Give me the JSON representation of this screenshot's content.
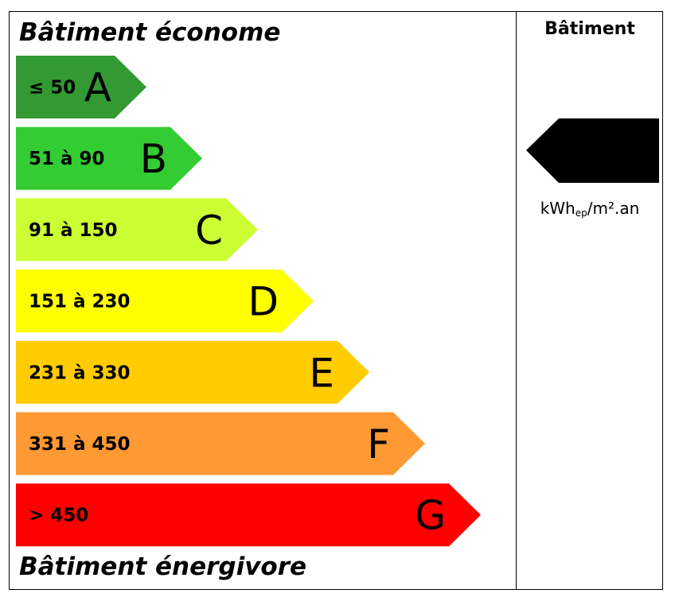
{
  "header": {
    "title_top": "Bâtiment économe",
    "title_bottom": "Bâtiment énergivore",
    "column_title": "Bâtiment"
  },
  "unit": {
    "main": "kWh",
    "sub": "ep",
    "tail": "/m².an"
  },
  "classes": [
    {
      "letter": "A",
      "range": "≤ 50",
      "color": "#339933"
    },
    {
      "letter": "B",
      "range": "51 à 90",
      "color": "#33cc33"
    },
    {
      "letter": "C",
      "range": "91 à 150",
      "color": "#ccff33"
    },
    {
      "letter": "D",
      "range": "151 à 230",
      "color": "#ffff00"
    },
    {
      "letter": "E",
      "range": "231 à 330",
      "color": "#ffcc00"
    },
    {
      "letter": "F",
      "range": "331 à 450",
      "color": "#ff9933"
    },
    {
      "letter": "G",
      "range": "> 450",
      "color": "#ff0000"
    }
  ],
  "indicator": {
    "color": "#000000"
  }
}
